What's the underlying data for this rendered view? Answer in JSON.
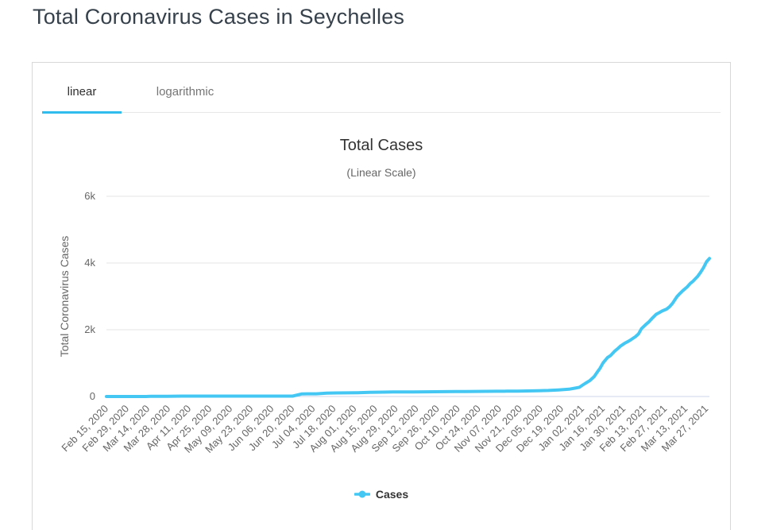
{
  "page": {
    "title": "Total Coronavirus Cases in Seychelles"
  },
  "scale_tabs": {
    "items": [
      {
        "label": "linear",
        "active": true
      },
      {
        "label": "logarithmic",
        "active": false
      }
    ]
  },
  "colors": {
    "page_title": "#36414c",
    "tab_accent": "#30bdee",
    "series_line": "#44c8f3",
    "grid": "#e6e6e6",
    "axis_line": "#ccd6eb",
    "chart_title": "#333333",
    "muted_text": "#666666",
    "legend_text": "#333333"
  },
  "chart_data": {
    "type": "line",
    "title": "Total Cases",
    "subtitle": "(Linear Scale)",
    "xlabel": "",
    "ylabel": "Total Coronavirus Cases",
    "grid": "on",
    "legend_position": "bottom-center",
    "ylim": [
      0,
      6000
    ],
    "xlim": [
      0,
      408
    ],
    "yticks": [
      {
        "value": 0,
        "label": "0"
      },
      {
        "value": 2000,
        "label": "2k"
      },
      {
        "value": 4000,
        "label": "4k"
      },
      {
        "value": 6000,
        "label": "6k"
      }
    ],
    "xticks": [
      {
        "day": 0,
        "label": "Feb 15, 2020"
      },
      {
        "day": 14,
        "label": "Feb 29, 2020"
      },
      {
        "day": 28,
        "label": "Mar 14, 2020"
      },
      {
        "day": 42,
        "label": "Mar 28, 2020"
      },
      {
        "day": 56,
        "label": "Apr 11, 2020"
      },
      {
        "day": 70,
        "label": "Apr 25, 2020"
      },
      {
        "day": 84,
        "label": "May 09, 2020"
      },
      {
        "day": 98,
        "label": "May 23, 2020"
      },
      {
        "day": 112,
        "label": "Jun 06, 2020"
      },
      {
        "day": 126,
        "label": "Jun 20, 2020"
      },
      {
        "day": 140,
        "label": "Jul 04, 2020"
      },
      {
        "day": 154,
        "label": "Jul 18, 2020"
      },
      {
        "day": 168,
        "label": "Aug 01, 2020"
      },
      {
        "day": 182,
        "label": "Aug 15, 2020"
      },
      {
        "day": 196,
        "label": "Aug 29, 2020"
      },
      {
        "day": 210,
        "label": "Sep 12, 2020"
      },
      {
        "day": 224,
        "label": "Sep 26, 2020"
      },
      {
        "day": 238,
        "label": "Oct 10, 2020"
      },
      {
        "day": 252,
        "label": "Oct 24, 2020"
      },
      {
        "day": 266,
        "label": "Nov 07, 2020"
      },
      {
        "day": 280,
        "label": "Nov 21, 2020"
      },
      {
        "day": 294,
        "label": "Dec 05, 2020"
      },
      {
        "day": 308,
        "label": "Dec 19, 2020"
      },
      {
        "day": 322,
        "label": "Jan 02, 2021"
      },
      {
        "day": 336,
        "label": "Jan 16, 2021"
      },
      {
        "day": 350,
        "label": "Jan 30, 2021"
      },
      {
        "day": 364,
        "label": "Feb 13, 2021"
      },
      {
        "day": 378,
        "label": "Feb 27, 2021"
      },
      {
        "day": 392,
        "label": "Mar 13, 2021"
      },
      {
        "day": 406,
        "label": "Mar 27, 2021"
      }
    ],
    "series": [
      {
        "name": "Cases",
        "color": "#44c8f3",
        "points": [
          [
            0,
            0
          ],
          [
            14,
            0
          ],
          [
            27,
            0
          ],
          [
            28,
            2
          ],
          [
            30,
            4
          ],
          [
            32,
            6
          ],
          [
            35,
            7
          ],
          [
            41,
            8
          ],
          [
            46,
            10
          ],
          [
            51,
            11
          ],
          [
            126,
            11
          ],
          [
            132,
            77
          ],
          [
            136,
            81
          ],
          [
            142,
            81
          ],
          [
            149,
            100
          ],
          [
            156,
            107
          ],
          [
            163,
            110
          ],
          [
            170,
            114
          ],
          [
            178,
            126
          ],
          [
            187,
            132
          ],
          [
            194,
            136
          ],
          [
            201,
            138
          ],
          [
            208,
            139
          ],
          [
            215,
            140
          ],
          [
            222,
            143
          ],
          [
            229,
            146
          ],
          [
            236,
            148
          ],
          [
            243,
            149
          ],
          [
            250,
            153
          ],
          [
            257,
            155
          ],
          [
            264,
            158
          ],
          [
            271,
            160
          ],
          [
            278,
            163
          ],
          [
            285,
            166
          ],
          [
            292,
            173
          ],
          [
            299,
            182
          ],
          [
            306,
            197
          ],
          [
            313,
            219
          ],
          [
            317,
            251
          ],
          [
            320,
            275
          ],
          [
            322,
            336
          ],
          [
            324,
            394
          ],
          [
            327,
            474
          ],
          [
            330,
            595
          ],
          [
            332,
            723
          ],
          [
            334,
            846
          ],
          [
            336,
            1007
          ],
          [
            339,
            1164
          ],
          [
            341,
            1224
          ],
          [
            344,
            1362
          ],
          [
            346,
            1437
          ],
          [
            348,
            1516
          ],
          [
            351,
            1605
          ],
          [
            353,
            1650
          ],
          [
            355,
            1705
          ],
          [
            358,
            1796
          ],
          [
            360,
            1873
          ],
          [
            362,
            2031
          ],
          [
            365,
            2159
          ],
          [
            367,
            2234
          ],
          [
            369,
            2330
          ],
          [
            372,
            2464
          ],
          [
            374,
            2513
          ],
          [
            376,
            2562
          ],
          [
            379,
            2618
          ],
          [
            381,
            2688
          ],
          [
            383,
            2791
          ],
          [
            386,
            2990
          ],
          [
            388,
            3085
          ],
          [
            390,
            3172
          ],
          [
            393,
            3285
          ],
          [
            395,
            3385
          ],
          [
            397,
            3458
          ],
          [
            400,
            3598
          ],
          [
            402,
            3720
          ],
          [
            404,
            3862
          ],
          [
            406,
            4035
          ],
          [
            408,
            4135
          ]
        ]
      }
    ],
    "legend": [
      {
        "name": "Cases",
        "color": "#44c8f3"
      }
    ]
  }
}
